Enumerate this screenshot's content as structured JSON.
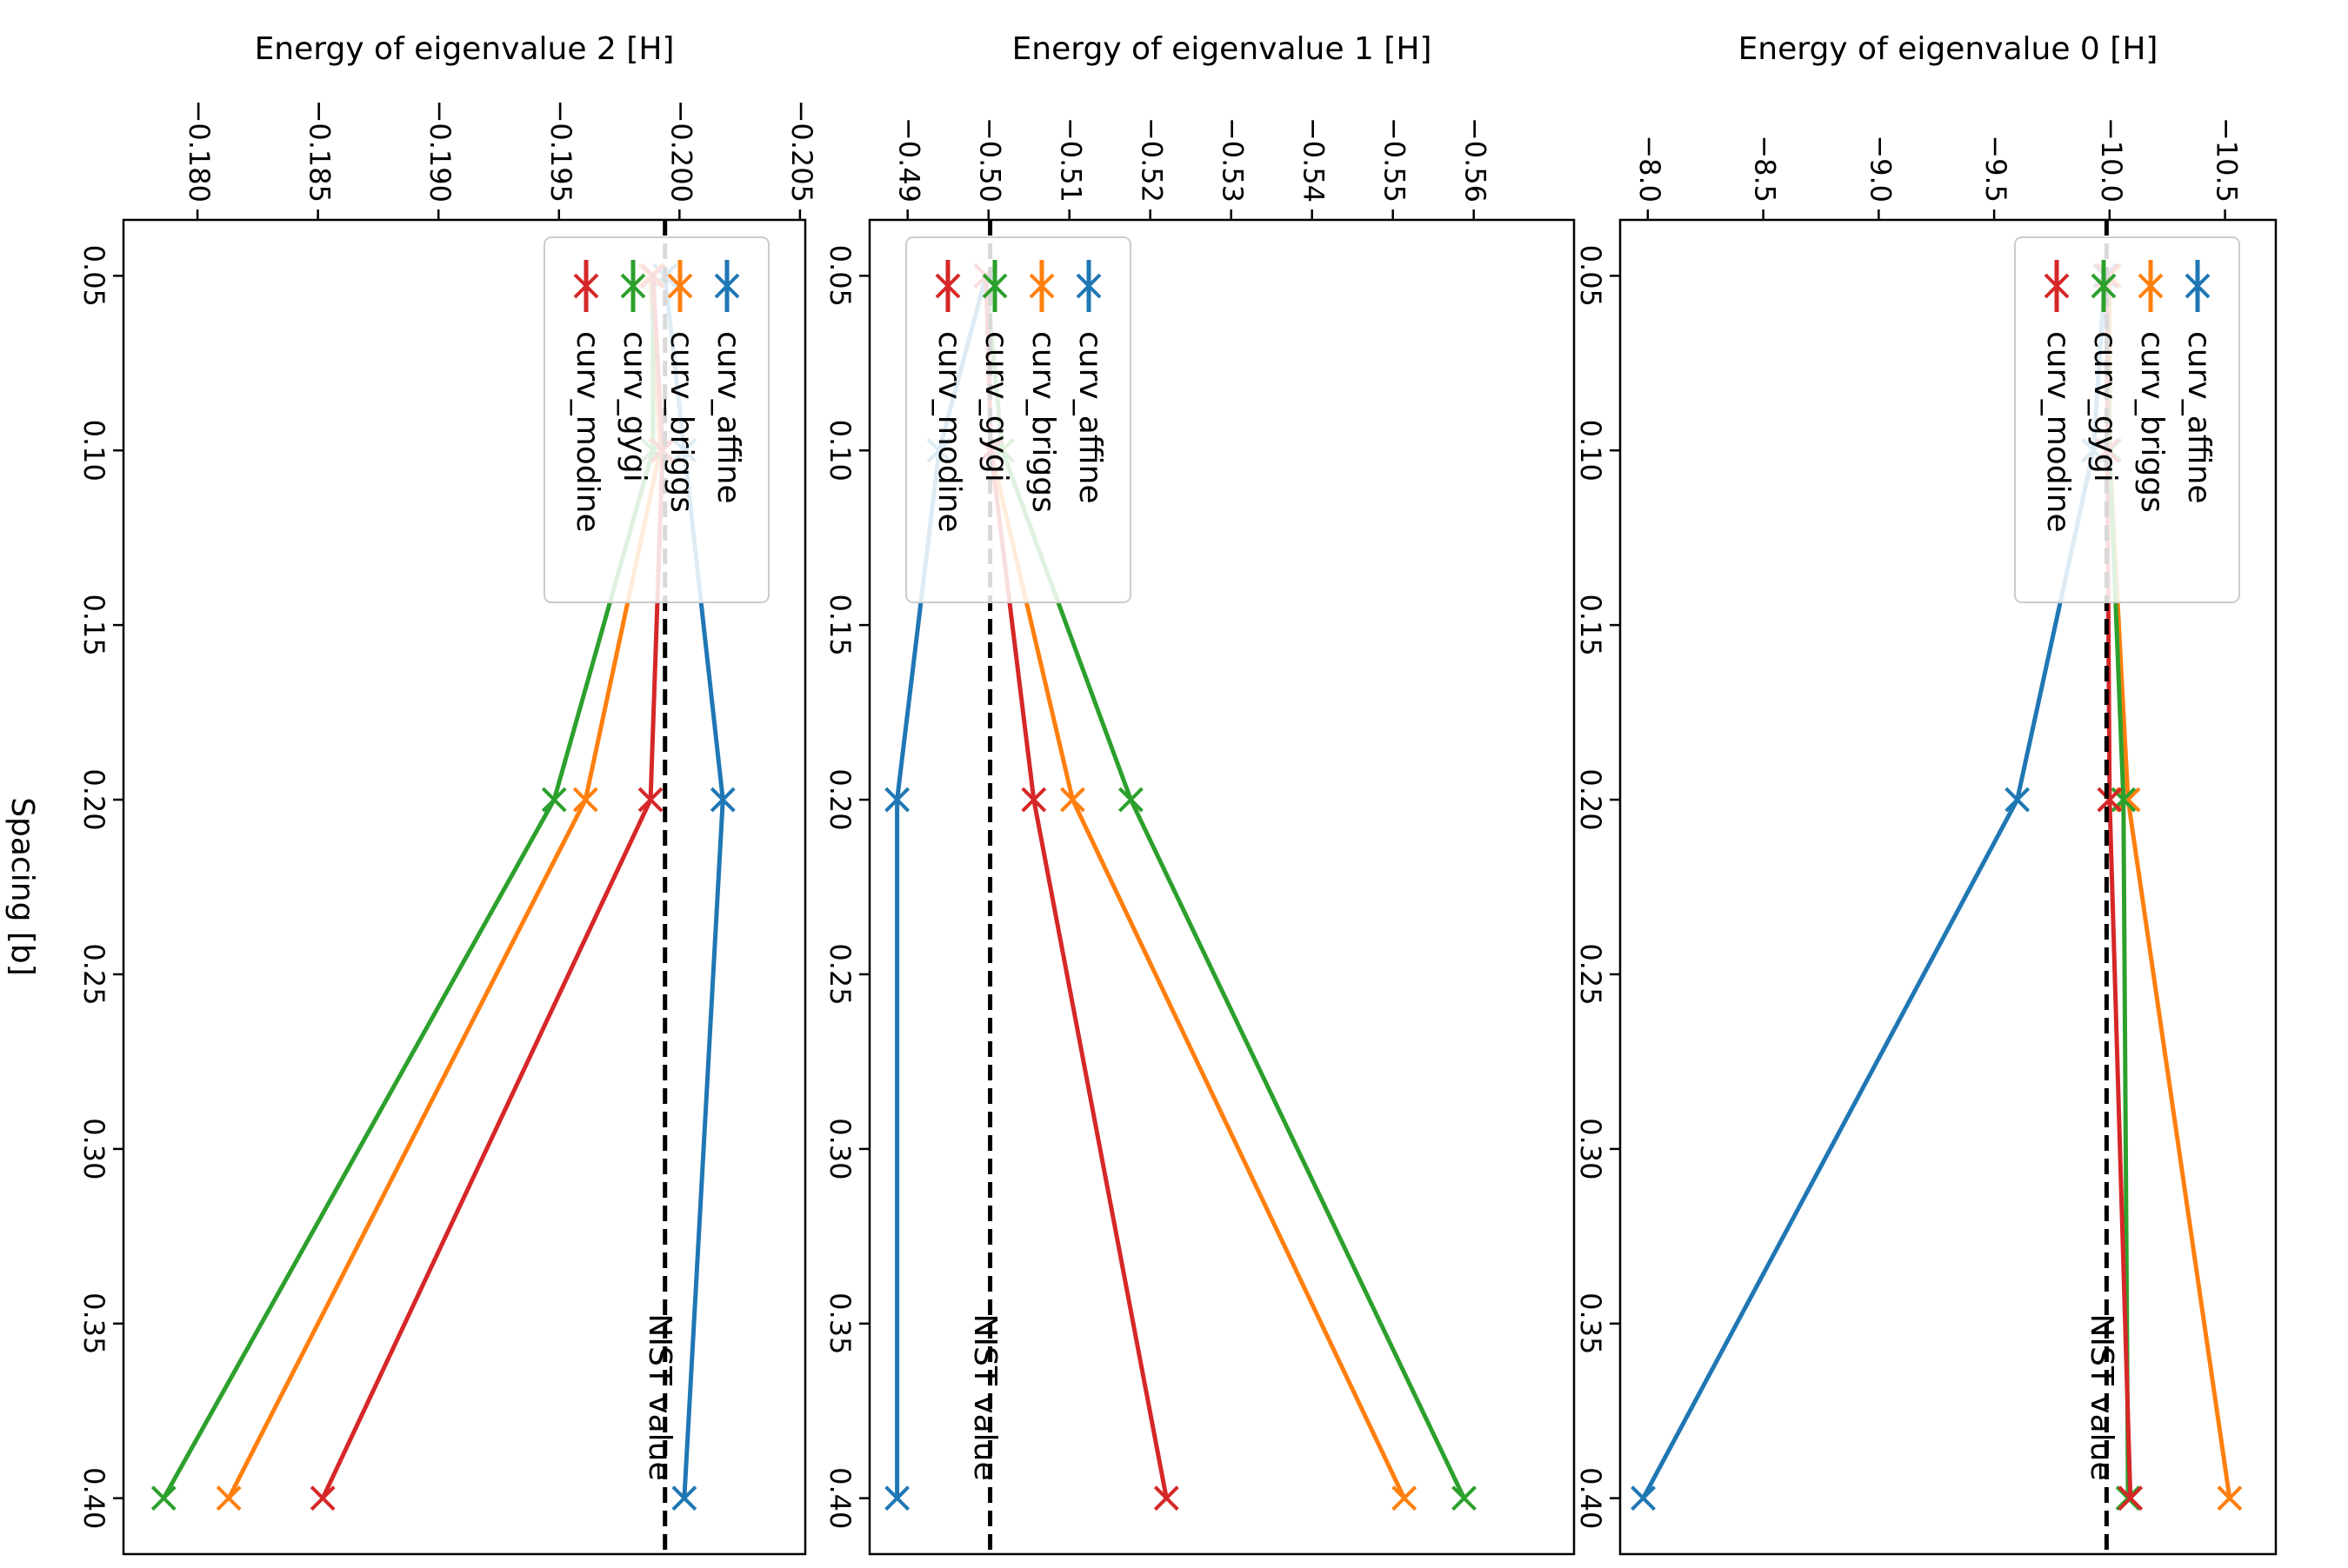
{
  "colors": {
    "curv_affine": "#1f77b4",
    "curv_briggs": "#ff7f0e",
    "curv_gygi": "#2ca02c",
    "curv_modine": "#d62728",
    "reference": "#000000"
  },
  "shared": {
    "spacing_label": "Spacing [b]",
    "nist_label": "NIST value",
    "legend": [
      "curv_affine",
      "curv_briggs",
      "curv_gygi",
      "curv_modine"
    ]
  },
  "chart_data": [
    {
      "type": "line",
      "title": "Energy of eigenvalue 0 [H]",
      "xlabel": "Spacing [b]",
      "ylabel": "Energy of eigenvalue 0 [H]",
      "x": [
        0.05,
        0.1,
        0.2,
        0.4
      ],
      "xlim": [
        0.034,
        0.416
      ],
      "ylim": [
        -10.72,
        -7.88
      ],
      "x_ticks": [
        "0.05",
        "0.10",
        "0.15",
        "0.20",
        "0.25",
        "0.30",
        "0.35",
        "0.40"
      ],
      "y_ticks": [
        "−10.5",
        "−10.0",
        "−9.5",
        "−9.0",
        "−8.5",
        "−8.0"
      ],
      "y_tick_values": [
        -10.5,
        -10.0,
        -9.5,
        -9.0,
        -8.5,
        -8.0
      ],
      "nist_value": -9.987,
      "nist_label": "NIST value",
      "legend_loc": "top-right",
      "series": [
        {
          "name": "curv_affine",
          "values": [
            -9.98,
            -9.93,
            -9.6,
            -7.98
          ]
        },
        {
          "name": "curv_briggs",
          "values": [
            -10.0,
            -10.0,
            -10.08,
            -10.52
          ]
        },
        {
          "name": "curv_gygi",
          "values": [
            -9.99,
            -10.0,
            -10.06,
            -10.08
          ]
        },
        {
          "name": "curv_modine",
          "values": [
            -9.99,
            -9.99,
            -10.0,
            -10.09
          ]
        }
      ]
    },
    {
      "type": "line",
      "title": "Energy of eigenvalue 1 [H]",
      "xlabel": "Spacing [b]",
      "ylabel": "Energy of eigenvalue 1 [H]",
      "x": [
        0.05,
        0.1,
        0.2,
        0.4
      ],
      "xlim": [
        0.034,
        0.416
      ],
      "ylim": [
        -0.5724,
        -0.4853
      ],
      "x_ticks": [
        "0.05",
        "0.10",
        "0.15",
        "0.20",
        "0.25",
        "0.30",
        "0.35",
        "0.40"
      ],
      "y_ticks": [
        "−0.56",
        "−0.55",
        "−0.54",
        "−0.53",
        "−0.52",
        "−0.51",
        "−0.50",
        "−0.49"
      ],
      "y_tick_values": [
        -0.56,
        -0.55,
        -0.54,
        -0.53,
        -0.52,
        -0.51,
        -0.5,
        -0.49
      ],
      "nist_value": -0.5002,
      "nist_label": "NIST value",
      "legend_loc": "top-left",
      "series": [
        {
          "name": "curv_affine",
          "values": [
            -0.4997,
            -0.4939,
            -0.4887,
            -0.4887
          ]
        },
        {
          "name": "curv_briggs",
          "values": [
            -0.4997,
            -0.5003,
            -0.5104,
            -0.5514
          ]
        },
        {
          "name": "curv_gygi",
          "values": [
            -0.4997,
            -0.5017,
            -0.5176,
            -0.5588
          ]
        },
        {
          "name": "curv_modine",
          "values": [
            -0.4997,
            -0.5003,
            -0.5056,
            -0.522
          ]
        }
      ]
    },
    {
      "type": "line",
      "title": "Energy of eigenvalue 2 [H]",
      "xlabel": "Spacing [b]",
      "ylabel": "Energy of eigenvalue 2 [H]",
      "x": [
        0.05,
        0.1,
        0.2,
        0.4
      ],
      "xlim": [
        0.034,
        0.416
      ],
      "ylim": [
        -0.20522,
        -0.17693
      ],
      "x_ticks": [
        "0.05",
        "0.10",
        "0.15",
        "0.20",
        "0.25",
        "0.30",
        "0.35",
        "0.40"
      ],
      "y_ticks": [
        "−0.205",
        "−0.200",
        "−0.195",
        "−0.190",
        "−0.185",
        "−0.180"
      ],
      "y_tick_values": [
        -0.205,
        -0.2,
        -0.195,
        -0.19,
        -0.185,
        -0.18
      ],
      "nist_value": -0.1994,
      "nist_label": "NIST value",
      "legend_loc": "top-right",
      "series": [
        {
          "name": "curv_affine",
          "values": [
            -0.1994,
            -0.2002,
            -0.2018,
            -0.2002
          ]
        },
        {
          "name": "curv_briggs",
          "values": [
            -0.1988,
            -0.1992,
            -0.1961,
            -0.1813
          ]
        },
        {
          "name": "curv_gygi",
          "values": [
            -0.1989,
            -0.1989,
            -0.1948,
            -0.1786
          ]
        },
        {
          "name": "curv_modine",
          "values": [
            -0.1989,
            -0.1993,
            -0.1988,
            -0.1852
          ]
        }
      ]
    }
  ]
}
